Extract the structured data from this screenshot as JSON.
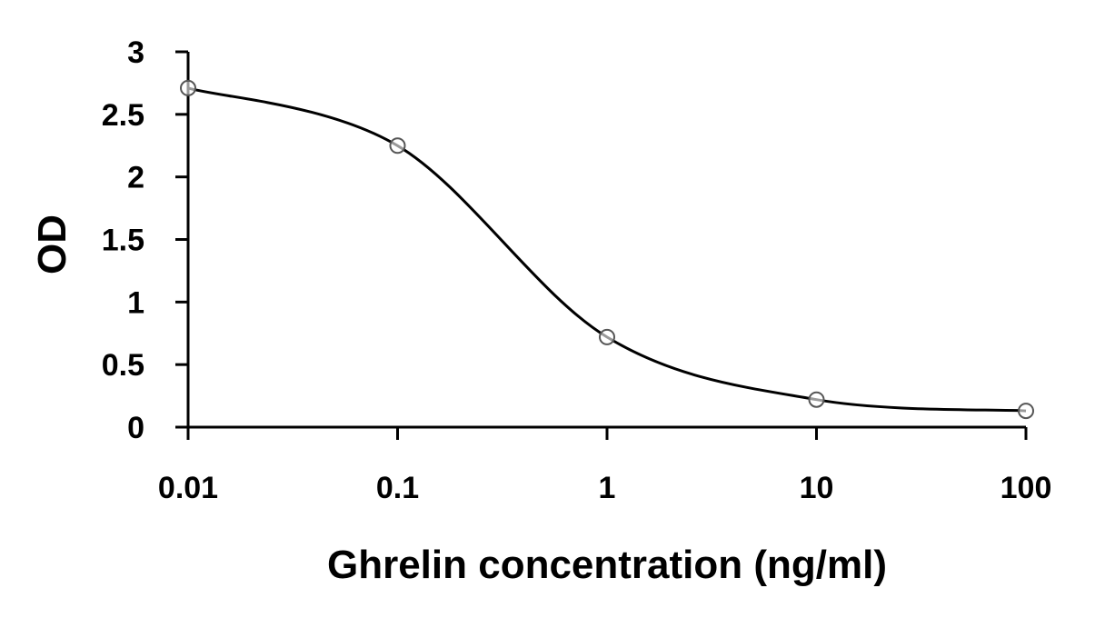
{
  "chart_data": {
    "type": "line",
    "xlabel": "Ghrelin concentration (ng/ml)",
    "ylabel": "OD",
    "x_scale": "log",
    "xlim": [
      0.01,
      100
    ],
    "ylim": [
      0,
      3
    ],
    "x_ticks": [
      "0.01",
      "0.1",
      "1",
      "10",
      "100"
    ],
    "y_ticks": [
      "0",
      "0.5",
      "1",
      "1.5",
      "2",
      "2.5",
      "3"
    ],
    "grid": false,
    "legend": "none",
    "series": [
      {
        "x": [
          0.01,
          0.1,
          1,
          10,
          100
        ],
        "y": [
          2.71,
          2.25,
          0.72,
          0.22,
          0.13
        ],
        "marker": "open-circle",
        "fit": "smooth sigmoidal curve"
      }
    ],
    "colors": {
      "line": "#000000",
      "axis": "#000000",
      "marker": "#555555"
    }
  }
}
